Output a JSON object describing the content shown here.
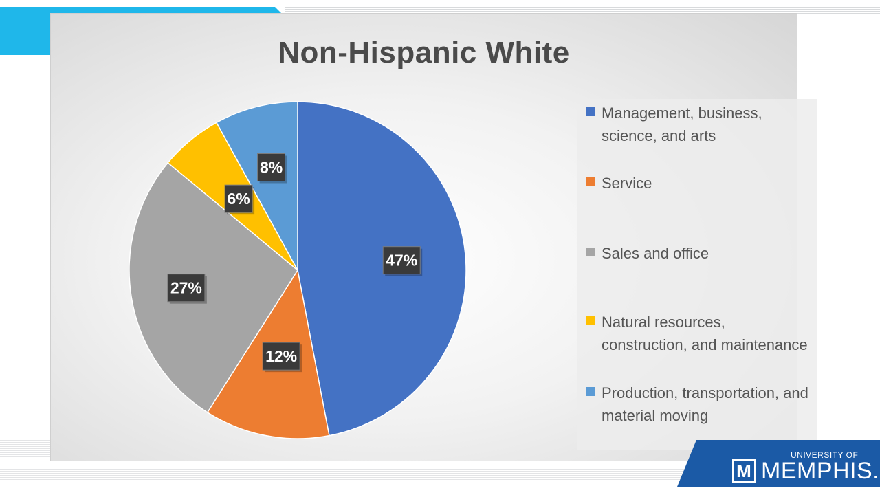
{
  "slide": {
    "logo": {
      "university_line": "UNIVERSITY OF",
      "name": "MEMPHIS.",
      "mark": "M"
    }
  },
  "chart_data": {
    "type": "pie",
    "title": "Non-Hispanic White",
    "categories": [
      "Management, business, science, and arts",
      "Service",
      "Sales and office",
      "Natural resources, construction, and maintenance",
      "Production, transportation, and material moving"
    ],
    "values": [
      47,
      12,
      27,
      6,
      8
    ],
    "data_labels": [
      "47%",
      "12%",
      "27%",
      "6%",
      "8%"
    ],
    "colors": [
      "#4472c4",
      "#ed7d31",
      "#a5a5a5",
      "#ffc000",
      "#5b9bd5"
    ],
    "legend_position": "right"
  }
}
